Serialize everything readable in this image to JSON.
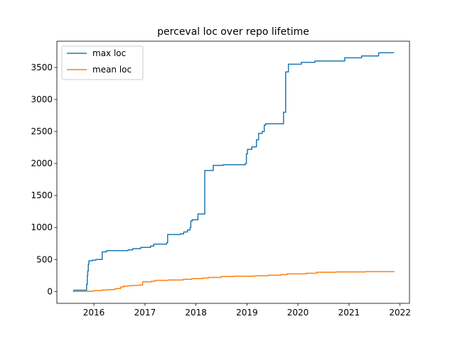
{
  "chart_data": {
    "type": "line",
    "title": "perceval loc over repo lifetime",
    "xlabel": "",
    "ylabel": "",
    "x_scale": "date",
    "xlim": [
      "2015-04-11",
      "2022-03-10"
    ],
    "ylim": [
      -185,
      3910
    ],
    "x_ticks": [
      {
        "date": "2016-01-01",
        "label": "2016"
      },
      {
        "date": "2017-01-01",
        "label": "2017"
      },
      {
        "date": "2018-01-01",
        "label": "2018"
      },
      {
        "date": "2019-01-01",
        "label": "2019"
      },
      {
        "date": "2020-01-01",
        "label": "2020"
      },
      {
        "date": "2021-01-01",
        "label": "2021"
      },
      {
        "date": "2022-01-01",
        "label": "2022"
      }
    ],
    "y_ticks": [
      0,
      500,
      1000,
      1500,
      2000,
      2500,
      3000,
      3500
    ],
    "grid": false,
    "legend": "upper-left",
    "series": [
      {
        "name": "max loc",
        "color": "#1f77b4",
        "step": true,
        "points": [
          [
            "2015-08-05",
            0
          ],
          [
            "2015-08-10",
            20
          ],
          [
            "2015-11-10",
            110
          ],
          [
            "2015-11-15",
            250
          ],
          [
            "2015-11-18",
            320
          ],
          [
            "2015-11-22",
            420
          ],
          [
            "2015-11-26",
            480
          ],
          [
            "2015-12-20",
            490
          ],
          [
            "2016-01-15",
            500
          ],
          [
            "2016-03-01",
            620
          ],
          [
            "2016-04-01",
            640
          ],
          [
            "2016-09-01",
            650
          ],
          [
            "2016-10-05",
            670
          ],
          [
            "2016-12-01",
            690
          ],
          [
            "2017-02-10",
            710
          ],
          [
            "2017-03-05",
            740
          ],
          [
            "2017-06-05",
            760
          ],
          [
            "2017-06-12",
            890
          ],
          [
            "2017-09-10",
            900
          ],
          [
            "2017-10-05",
            930
          ],
          [
            "2017-11-01",
            960
          ],
          [
            "2017-11-20",
            1000
          ],
          [
            "2017-11-25",
            1100
          ],
          [
            "2017-12-05",
            1120
          ],
          [
            "2018-01-15",
            1210
          ],
          [
            "2018-03-05",
            1890
          ],
          [
            "2018-05-05",
            1970
          ],
          [
            "2018-07-15",
            1980
          ],
          [
            "2018-12-20",
            2000
          ],
          [
            "2018-12-28",
            2150
          ],
          [
            "2019-01-05",
            2220
          ],
          [
            "2019-02-05",
            2260
          ],
          [
            "2019-03-10",
            2370
          ],
          [
            "2019-03-25",
            2470
          ],
          [
            "2019-04-20",
            2500
          ],
          [
            "2019-05-05",
            2600
          ],
          [
            "2019-05-15",
            2620
          ],
          [
            "2019-09-20",
            2800
          ],
          [
            "2019-10-05",
            3430
          ],
          [
            "2019-10-25",
            3550
          ],
          [
            "2020-01-25",
            3580
          ],
          [
            "2020-05-01",
            3600
          ],
          [
            "2020-10-15",
            3600
          ],
          [
            "2020-12-01",
            3650
          ],
          [
            "2021-04-01",
            3680
          ],
          [
            "2021-06-01",
            3680
          ],
          [
            "2021-08-01",
            3730
          ],
          [
            "2021-11-20",
            3730
          ]
        ]
      },
      {
        "name": "mean loc",
        "color": "#ff7f0e",
        "step": true,
        "points": [
          [
            "2015-08-05",
            0
          ],
          [
            "2015-10-15",
            3
          ],
          [
            "2015-11-20",
            5
          ],
          [
            "2016-01-01",
            10
          ],
          [
            "2016-01-10",
            15
          ],
          [
            "2016-03-01",
            25
          ],
          [
            "2016-04-15",
            30
          ],
          [
            "2016-06-01",
            45
          ],
          [
            "2016-07-10",
            70
          ],
          [
            "2016-08-01",
            85
          ],
          [
            "2016-09-01",
            90
          ],
          [
            "2016-10-01",
            95
          ],
          [
            "2016-11-15",
            100
          ],
          [
            "2016-12-15",
            150
          ],
          [
            "2017-02-15",
            160
          ],
          [
            "2017-03-15",
            175
          ],
          [
            "2017-06-15",
            180
          ],
          [
            "2017-10-01",
            190
          ],
          [
            "2017-12-01",
            200
          ],
          [
            "2018-02-15",
            210
          ],
          [
            "2018-04-01",
            220
          ],
          [
            "2018-07-01",
            235
          ],
          [
            "2018-10-01",
            240
          ],
          [
            "2019-03-01",
            245
          ],
          [
            "2019-06-01",
            255
          ],
          [
            "2019-09-01",
            265
          ],
          [
            "2019-10-15",
            275
          ],
          [
            "2020-03-01",
            285
          ],
          [
            "2020-05-15",
            300
          ],
          [
            "2020-10-01",
            305
          ],
          [
            "2021-05-01",
            310
          ],
          [
            "2021-11-20",
            315
          ]
        ]
      }
    ]
  }
}
